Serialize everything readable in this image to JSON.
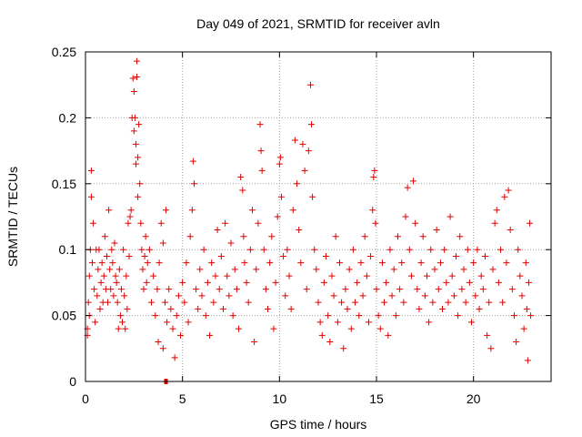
{
  "chart_data": {
    "type": "scatter",
    "title": "Day 049 of 2021, SRMTID for receiver avln",
    "xlabel": "GPS time / hours",
    "ylabel": "SRMTID / TECUs",
    "xlim": [
      0,
      24
    ],
    "ylim": [
      0,
      0.25
    ],
    "x_ticks": [
      0,
      5,
      10,
      15,
      20
    ],
    "x_tick_labels": [
      "0",
      "5",
      "10",
      "15",
      "20"
    ],
    "y_ticks": [
      0,
      0.05,
      0.1,
      0.15,
      0.2,
      0.25
    ],
    "y_tick_labels": [
      "0",
      "0.05",
      "0.1",
      "0.15",
      "0.2",
      "0.25"
    ],
    "grid": true,
    "marker": "plus",
    "colors": {
      "points": "#e00000",
      "grid": "#a0a0a0",
      "axis": "#000000"
    },
    "series": [
      {
        "points": [
          [
            0.1,
            0.04
          ],
          [
            0.1,
            0.035
          ],
          [
            0.15,
            0.06
          ],
          [
            0.2,
            0.08
          ],
          [
            0.2,
            0.05
          ],
          [
            0.25,
            0.1
          ],
          [
            0.3,
            0.16
          ],
          [
            0.3,
            0.14
          ],
          [
            0.35,
            0.09
          ],
          [
            0.4,
            0.12
          ],
          [
            0.45,
            0.07
          ],
          [
            0.5,
            0.045
          ],
          [
            0.55,
            0.1
          ],
          [
            0.6,
            0.065
          ],
          [
            0.65,
            0.085
          ],
          [
            0.7,
            0.1
          ],
          [
            0.75,
            0.055
          ],
          [
            0.8,
            0.075
          ],
          [
            0.85,
            0.09
          ],
          [
            0.9,
            0.06
          ],
          [
            0.95,
            0.08
          ],
          [
            1.0,
            0.11
          ],
          [
            1.05,
            0.07
          ],
          [
            1.1,
            0.095
          ],
          [
            1.15,
            0.06
          ],
          [
            1.2,
            0.13
          ],
          [
            1.25,
            0.085
          ],
          [
            1.3,
            0.07
          ],
          [
            1.35,
            0.1
          ],
          [
            1.4,
            0.09
          ],
          [
            1.45,
            0.065
          ],
          [
            1.5,
            0.105
          ],
          [
            1.55,
            0.08
          ],
          [
            1.6,
            0.075
          ],
          [
            1.65,
            0.06
          ],
          [
            1.7,
            0.04
          ],
          [
            1.75,
            0.085
          ],
          [
            1.8,
            0.05
          ],
          [
            1.85,
            0.07
          ],
          [
            1.9,
            0.045
          ],
          [
            1.95,
            0.1
          ],
          [
            2.0,
            0.065
          ],
          [
            2.05,
            0.04
          ],
          [
            2.1,
            0.08
          ],
          [
            2.15,
            0.055
          ],
          [
            2.2,
            0.12
          ],
          [
            2.25,
            0.095
          ],
          [
            2.3,
            0.125
          ],
          [
            2.35,
            0.13
          ],
          [
            2.4,
            0.2
          ],
          [
            2.45,
            0.23
          ],
          [
            2.5,
            0.22
          ],
          [
            2.5,
            0.19
          ],
          [
            2.55,
            0.2
          ],
          [
            2.6,
            0.18
          ],
          [
            2.6,
            0.165
          ],
          [
            2.65,
            0.243
          ],
          [
            2.65,
            0.231
          ],
          [
            2.7,
            0.17
          ],
          [
            2.7,
            0.14
          ],
          [
            2.75,
            0.195
          ],
          [
            2.8,
            0.15
          ],
          [
            2.85,
            0.12
          ],
          [
            2.9,
            0.1
          ],
          [
            2.95,
            0.085
          ],
          [
            3.0,
            0.07
          ],
          [
            3.05,
            0.095
          ],
          [
            3.1,
            0.11
          ],
          [
            3.15,
            0.075
          ],
          [
            3.2,
            0.09
          ],
          [
            3.3,
            0.1
          ],
          [
            3.4,
            0.06
          ],
          [
            3.5,
            0.08
          ],
          [
            3.6,
            0.05
          ],
          [
            3.7,
            0.07
          ],
          [
            3.75,
            0.03
          ],
          [
            3.8,
            0.09
          ],
          [
            3.9,
            0.12
          ],
          [
            4.0,
            0.105
          ],
          [
            4.0,
            0.025
          ],
          [
            4.1,
            0.06
          ],
          [
            4.15,
            0.13
          ],
          [
            4.2,
            0.045
          ],
          [
            4.3,
            0.07
          ],
          [
            4.4,
            0.055
          ],
          [
            4.5,
            0.04
          ],
          [
            4.6,
            0.018
          ],
          [
            4.7,
            0.05
          ],
          [
            4.8,
            0.065
          ],
          [
            4.9,
            0.035
          ],
          [
            5.0,
            0.075
          ],
          [
            5.1,
            0.06
          ],
          [
            5.2,
            0.09
          ],
          [
            5.3,
            0.045
          ],
          [
            5.4,
            0.11
          ],
          [
            5.5,
            0.13
          ],
          [
            5.55,
            0.167
          ],
          [
            5.6,
            0.15
          ],
          [
            5.7,
            0.07
          ],
          [
            5.8,
            0.055
          ],
          [
            5.9,
            0.085
          ],
          [
            6.0,
            0.065
          ],
          [
            6.1,
            0.1
          ],
          [
            6.2,
            0.05
          ],
          [
            6.3,
            0.075
          ],
          [
            6.4,
            0.035
          ],
          [
            6.5,
            0.09
          ],
          [
            6.6,
            0.06
          ],
          [
            6.7,
            0.08
          ],
          [
            6.8,
            0.115
          ],
          [
            6.9,
            0.07
          ],
          [
            7.0,
            0.095
          ],
          [
            7.1,
            0.055
          ],
          [
            7.2,
            0.12
          ],
          [
            7.3,
            0.08
          ],
          [
            7.4,
            0.065
          ],
          [
            7.5,
            0.105
          ],
          [
            7.6,
            0.05
          ],
          [
            7.7,
            0.085
          ],
          [
            7.8,
            0.07
          ],
          [
            7.9,
            0.04
          ],
          [
            8.0,
            0.155
          ],
          [
            8.1,
            0.145
          ],
          [
            8.15,
            0.11
          ],
          [
            8.2,
            0.09
          ],
          [
            8.3,
            0.075
          ],
          [
            8.4,
            0.06
          ],
          [
            8.5,
            0.1
          ],
          [
            8.6,
            0.13
          ],
          [
            8.7,
            0.03
          ],
          [
            8.8,
            0.085
          ],
          [
            8.9,
            0.12
          ],
          [
            9.0,
            0.195
          ],
          [
            9.05,
            0.175
          ],
          [
            9.1,
            0.16
          ],
          [
            9.2,
            0.1
          ],
          [
            9.3,
            0.07
          ],
          [
            9.4,
            0.055
          ],
          [
            9.5,
            0.09
          ],
          [
            9.6,
            0.11
          ],
          [
            9.7,
            0.04
          ],
          [
            9.8,
            0.075
          ],
          [
            9.9,
            0.125
          ],
          [
            10.0,
            0.165
          ],
          [
            10.05,
            0.17
          ],
          [
            10.1,
            0.14
          ],
          [
            10.2,
            0.095
          ],
          [
            10.3,
            0.065
          ],
          [
            10.4,
            0.1
          ],
          [
            10.5,
            0.08
          ],
          [
            10.6,
            0.055
          ],
          [
            10.7,
            0.13
          ],
          [
            10.8,
            0.183
          ],
          [
            10.9,
            0.15
          ],
          [
            11.0,
            0.115
          ],
          [
            11.1,
            0.09
          ],
          [
            11.2,
            0.18
          ],
          [
            11.3,
            0.16
          ],
          [
            11.4,
            0.07
          ],
          [
            11.5,
            0.175
          ],
          [
            11.6,
            0.225
          ],
          [
            11.65,
            0.195
          ],
          [
            11.7,
            0.14
          ],
          [
            11.8,
            0.1
          ],
          [
            11.9,
            0.085
          ],
          [
            12.0,
            0.06
          ],
          [
            12.1,
            0.045
          ],
          [
            12.2,
            0.035
          ],
          [
            12.3,
            0.075
          ],
          [
            12.4,
            0.095
          ],
          [
            12.5,
            0.05
          ],
          [
            12.6,
            0.03
          ],
          [
            12.7,
            0.08
          ],
          [
            12.8,
            0.065
          ],
          [
            12.9,
            0.11
          ],
          [
            13.0,
            0.045
          ],
          [
            13.1,
            0.09
          ],
          [
            13.2,
            0.06
          ],
          [
            13.3,
            0.025
          ],
          [
            13.4,
            0.07
          ],
          [
            13.5,
            0.055
          ],
          [
            13.6,
            0.085
          ],
          [
            13.7,
            0.04
          ],
          [
            13.8,
            0.1
          ],
          [
            13.9,
            0.06
          ],
          [
            14.0,
            0.075
          ],
          [
            14.1,
            0.05
          ],
          [
            14.2,
            0.09
          ],
          [
            14.3,
            0.065
          ],
          [
            14.4,
            0.11
          ],
          [
            14.5,
            0.08
          ],
          [
            14.6,
            0.045
          ],
          [
            14.7,
            0.095
          ],
          [
            14.8,
            0.13
          ],
          [
            14.85,
            0.155
          ],
          [
            14.9,
            0.16
          ],
          [
            14.95,
            0.12
          ],
          [
            15.0,
            0.07
          ],
          [
            15.1,
            0.05
          ],
          [
            15.2,
            0.04
          ],
          [
            15.3,
            0.09
          ],
          [
            15.4,
            0.06
          ],
          [
            15.5,
            0.075
          ],
          [
            15.6,
            0.035
          ],
          [
            15.7,
            0.1
          ],
          [
            15.8,
            0.065
          ],
          [
            15.9,
            0.085
          ],
          [
            16.0,
            0.05
          ],
          [
            16.1,
            0.11
          ],
          [
            16.2,
            0.07
          ],
          [
            16.3,
            0.09
          ],
          [
            16.4,
            0.06
          ],
          [
            16.5,
            0.125
          ],
          [
            16.6,
            0.147
          ],
          [
            16.7,
            0.1
          ],
          [
            16.8,
            0.08
          ],
          [
            16.9,
            0.152
          ],
          [
            17.0,
            0.12
          ],
          [
            17.1,
            0.07
          ],
          [
            17.2,
            0.055
          ],
          [
            17.3,
            0.09
          ],
          [
            17.4,
            0.11
          ],
          [
            17.5,
            0.065
          ],
          [
            17.6,
            0.08
          ],
          [
            17.7,
            0.045
          ],
          [
            17.8,
            0.1
          ],
          [
            17.9,
            0.06
          ],
          [
            18.0,
            0.085
          ],
          [
            18.1,
            0.115
          ],
          [
            18.2,
            0.07
          ],
          [
            18.3,
            0.09
          ],
          [
            18.4,
            0.055
          ],
          [
            18.5,
            0.1
          ],
          [
            18.6,
            0.075
          ],
          [
            18.7,
            0.06
          ],
          [
            18.8,
            0.125
          ],
          [
            18.9,
            0.08
          ],
          [
            19.0,
            0.065
          ],
          [
            19.1,
            0.095
          ],
          [
            19.2,
            0.05
          ],
          [
            19.3,
            0.11
          ],
          [
            19.4,
            0.07
          ],
          [
            19.5,
            0.085
          ],
          [
            19.6,
            0.06
          ],
          [
            19.7,
            0.1
          ],
          [
            19.8,
            0.075
          ],
          [
            19.9,
            0.045
          ],
          [
            20.0,
            0.09
          ],
          [
            20.1,
            0.065
          ],
          [
            20.2,
            0.1
          ],
          [
            20.3,
            0.055
          ],
          [
            20.4,
            0.08
          ],
          [
            20.5,
            0.07
          ],
          [
            20.6,
            0.095
          ],
          [
            20.7,
            0.035
          ],
          [
            20.8,
            0.06
          ],
          [
            20.9,
            0.025
          ],
          [
            21.0,
            0.085
          ],
          [
            21.1,
            0.12
          ],
          [
            21.2,
            0.13
          ],
          [
            21.3,
            0.075
          ],
          [
            21.4,
            0.1
          ],
          [
            21.5,
            0.06
          ],
          [
            21.6,
            0.14
          ],
          [
            21.7,
            0.09
          ],
          [
            21.8,
            0.145
          ],
          [
            21.9,
            0.115
          ],
          [
            22.0,
            0.07
          ],
          [
            22.1,
            0.05
          ],
          [
            22.2,
            0.03
          ],
          [
            22.3,
            0.1
          ],
          [
            22.4,
            0.08
          ],
          [
            22.5,
            0.065
          ],
          [
            22.6,
            0.04
          ],
          [
            22.7,
            0.09
          ],
          [
            22.75,
            0.055
          ],
          [
            22.8,
            0.016
          ],
          [
            22.85,
            0.075
          ],
          [
            22.9,
            0.12
          ],
          [
            22.95,
            0.05
          ]
        ]
      }
    ],
    "highlight_points": [
      [
        4.15,
        0.0
      ]
    ]
  }
}
